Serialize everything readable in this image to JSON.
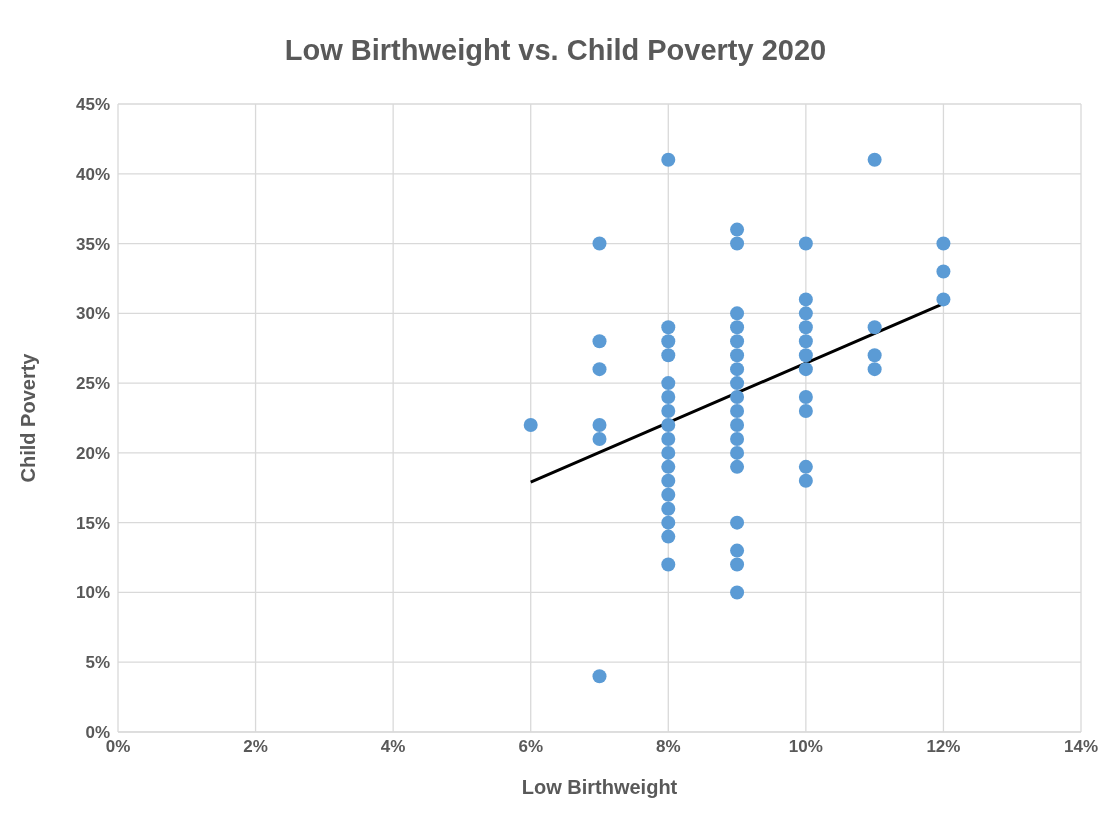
{
  "chart_data": {
    "type": "scatter",
    "title": "Low Birthweight vs. Child Poverty 2020",
    "xlabel": "Low Birthweight",
    "ylabel": "Child Poverty",
    "series": [
      {
        "color": "#5b9bd5",
        "marker": "circle",
        "x": [
          6,
          7,
          7,
          7,
          7,
          7,
          7,
          8,
          8,
          8,
          8,
          8,
          8,
          8,
          8,
          8,
          8,
          8,
          8,
          8,
          8,
          8,
          8,
          8,
          9,
          9,
          9,
          9,
          9,
          9,
          9,
          9,
          9,
          9,
          9,
          9,
          9,
          9,
          9,
          9,
          9,
          9,
          10,
          10,
          10,
          10,
          10,
          10,
          10,
          10,
          10,
          10,
          10,
          11,
          11,
          11,
          11,
          12,
          12,
          12
        ],
        "values": [
          22,
          35,
          28,
          26,
          22,
          21,
          4,
          41,
          29,
          28,
          27,
          25,
          24,
          23,
          22,
          21,
          20,
          19,
          18,
          17,
          16,
          15,
          14,
          12,
          36,
          35,
          30,
          29,
          28,
          27,
          26,
          25,
          24,
          23,
          22,
          21,
          20,
          19,
          15,
          13,
          12,
          10,
          35,
          31,
          30,
          29,
          28,
          27,
          26,
          24,
          23,
          19,
          18,
          41,
          29,
          27,
          26,
          35,
          33,
          31
        ]
      },
      {
        "type": "line",
        "color": "#000000",
        "line_style": "solid",
        "x": [
          6,
          12
        ],
        "values": [
          17.9,
          30.7
        ]
      }
    ],
    "xlim": [
      0,
      14
    ],
    "xticks": [
      {
        "value": 0,
        "label": "0%"
      },
      {
        "value": 2,
        "label": "2%"
      },
      {
        "value": 4,
        "label": "4%"
      },
      {
        "value": 6,
        "label": "6%"
      },
      {
        "value": 8,
        "label": "8%"
      },
      {
        "value": 10,
        "label": "10%"
      },
      {
        "value": 12,
        "label": "12%"
      },
      {
        "value": 14,
        "label": "14%"
      }
    ],
    "ylim": [
      0,
      45
    ],
    "yticks": [
      {
        "value": 0,
        "label": "0%"
      },
      {
        "value": 5,
        "label": "5%"
      },
      {
        "value": 10,
        "label": "10%"
      },
      {
        "value": 15,
        "label": "15%"
      },
      {
        "value": 20,
        "label": "20%"
      },
      {
        "value": 25,
        "label": "25%"
      },
      {
        "value": 30,
        "label": "30%"
      },
      {
        "value": 35,
        "label": "35%"
      },
      {
        "value": 40,
        "label": "40%"
      },
      {
        "value": 45,
        "label": "45%"
      }
    ],
    "grid": true
  }
}
